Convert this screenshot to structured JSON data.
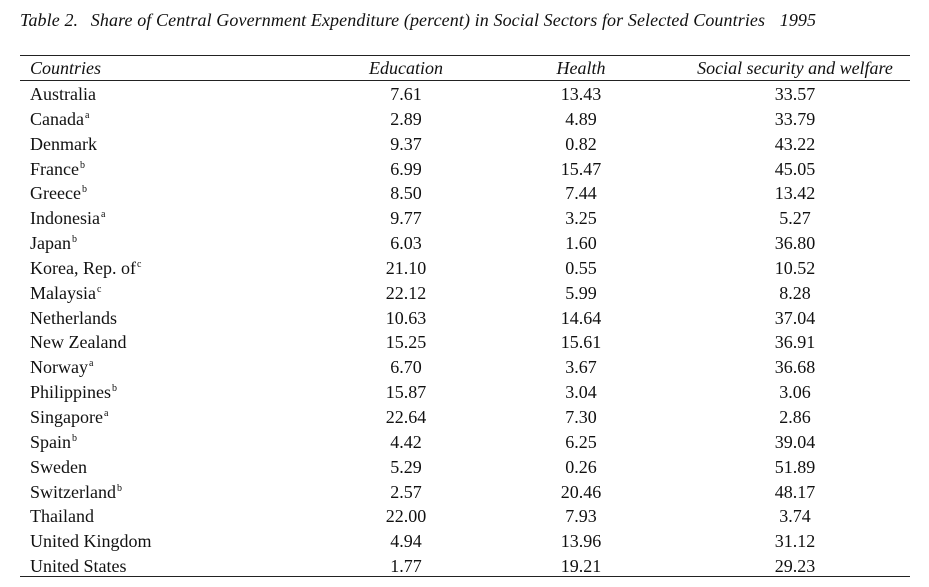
{
  "table": {
    "label": "Table 2.",
    "title": "Share of Central Government Expenditure (percent) in Social Sectors for Selected Countries",
    "year": "1995",
    "columns": [
      "Countries",
      "Education",
      "Health",
      "Social security and welfare"
    ],
    "rows": [
      {
        "country": "Australia",
        "note": "",
        "education": "7.61",
        "health": "13.43",
        "social": "33.57"
      },
      {
        "country": "Canada",
        "note": "a",
        "education": "2.89",
        "health": "4.89",
        "social": "33.79"
      },
      {
        "country": "Denmark",
        "note": "",
        "education": "9.37",
        "health": "0.82",
        "social": "43.22"
      },
      {
        "country": "France",
        "note": "b",
        "education": "6.99",
        "health": "15.47",
        "social": "45.05"
      },
      {
        "country": "Greece",
        "note": "b",
        "education": "8.50",
        "health": "7.44",
        "social": "13.42"
      },
      {
        "country": "Indonesia",
        "note": "a",
        "education": "9.77",
        "health": "3.25",
        "social": "5.27"
      },
      {
        "country": "Japan",
        "note": "b",
        "education": "6.03",
        "health": "1.60",
        "social": "36.80"
      },
      {
        "country": "Korea, Rep. of",
        "note": "c",
        "education": "21.10",
        "health": "0.55",
        "social": "10.52"
      },
      {
        "country": "Malaysia",
        "note": "c",
        "education": "22.12",
        "health": "5.99",
        "social": "8.28"
      },
      {
        "country": "Netherlands",
        "note": "",
        "education": "10.63",
        "health": "14.64",
        "social": "37.04"
      },
      {
        "country": "New Zealand",
        "note": "",
        "education": "15.25",
        "health": "15.61",
        "social": "36.91"
      },
      {
        "country": "Norway",
        "note": "a",
        "education": "6.70",
        "health": "3.67",
        "social": "36.68"
      },
      {
        "country": "Philippines",
        "note": "b",
        "education": "15.87",
        "health": "3.04",
        "social": "3.06"
      },
      {
        "country": "Singapore",
        "note": "a",
        "education": "22.64",
        "health": "7.30",
        "social": "2.86"
      },
      {
        "country": "Spain",
        "note": "b",
        "education": "4.42",
        "health": "6.25",
        "social": "39.04"
      },
      {
        "country": "Sweden",
        "note": "",
        "education": "5.29",
        "health": "0.26",
        "social": "51.89"
      },
      {
        "country": "Switzerland",
        "note": "b",
        "education": "2.57",
        "health": "20.46",
        "social": "48.17"
      },
      {
        "country": "Thailand",
        "note": "",
        "education": "22.00",
        "health": "7.93",
        "social": "3.74"
      },
      {
        "country": "United Kingdom",
        "note": "",
        "education": "4.94",
        "health": "13.96",
        "social": "31.12"
      },
      {
        "country": "United States",
        "note": "",
        "education": "1.77",
        "health": "19.21",
        "social": "29.23"
      }
    ]
  }
}
